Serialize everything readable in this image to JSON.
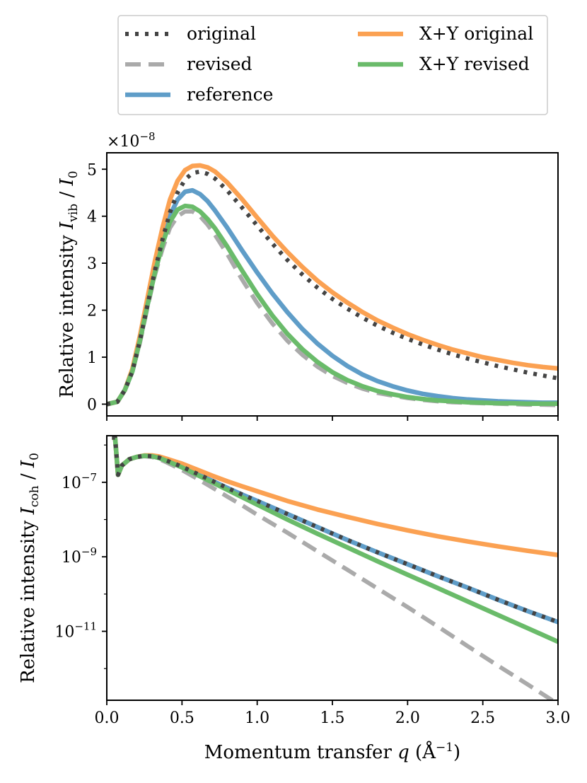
{
  "chart_data": [
    {
      "type": "line",
      "panel": "top",
      "ylabel": {
        "main": "Relative intensity ",
        "var": "I",
        "sub": "vib",
        "sep": " / ",
        "var2": "I",
        "sub2": "0"
      },
      "offset_text": {
        "base": "×10",
        "exp": "−8"
      },
      "xlim": [
        0.0,
        3.0
      ],
      "ylim": [
        -0.25,
        5.35
      ],
      "y_scale": "linear",
      "yticks": [
        0,
        1,
        2,
        3,
        4,
        5
      ],
      "ytick_labels": [
        "0",
        "1",
        "2",
        "3",
        "4",
        "5"
      ],
      "series": [
        {
          "name": "original",
          "color": "#444444",
          "style": "dotted",
          "x": [
            0,
            0.07,
            0.12,
            0.17,
            0.22,
            0.27,
            0.32,
            0.37,
            0.42,
            0.47,
            0.52,
            0.57,
            0.62,
            0.67,
            0.72,
            0.8,
            0.9,
            1.0,
            1.1,
            1.2,
            1.3,
            1.4,
            1.5,
            1.6,
            1.7,
            1.8,
            1.9,
            2.0,
            2.1,
            2.2,
            2.3,
            2.4,
            2.5,
            2.6,
            2.7,
            2.8,
            2.9,
            3.0
          ],
          "y": [
            0,
            0.05,
            0.3,
            0.7,
            1.35,
            2.1,
            2.85,
            3.5,
            4.08,
            4.5,
            4.78,
            4.92,
            4.95,
            4.9,
            4.8,
            4.55,
            4.18,
            3.8,
            3.42,
            3.07,
            2.76,
            2.48,
            2.24,
            2.03,
            1.84,
            1.67,
            1.52,
            1.39,
            1.27,
            1.16,
            1.06,
            0.97,
            0.89,
            0.81,
            0.74,
            0.67,
            0.61,
            0.55
          ]
        },
        {
          "name": "revised",
          "color": "#aaaaaa",
          "style": "dashed",
          "x": [
            0,
            0.07,
            0.12,
            0.17,
            0.22,
            0.27,
            0.32,
            0.37,
            0.42,
            0.47,
            0.52,
            0.57,
            0.62,
            0.67,
            0.72,
            0.8,
            0.9,
            1.0,
            1.1,
            1.2,
            1.3,
            1.4,
            1.5,
            1.6,
            1.7,
            1.8,
            1.9,
            2.0,
            2.1,
            2.2,
            2.3,
            2.4,
            2.5,
            2.6,
            2.7,
            2.8,
            2.9,
            3.0
          ],
          "y": [
            0,
            0.05,
            0.3,
            0.7,
            1.3,
            2.05,
            2.75,
            3.3,
            3.75,
            4.0,
            4.1,
            4.1,
            4.0,
            3.82,
            3.6,
            3.2,
            2.65,
            2.15,
            1.72,
            1.35,
            1.05,
            0.8,
            0.6,
            0.45,
            0.33,
            0.24,
            0.18,
            0.13,
            0.09,
            0.06,
            0.04,
            0.03,
            0.02,
            0.01,
            0.0,
            -0.01,
            -0.01,
            -0.02
          ]
        },
        {
          "name": "reference",
          "color": "#5f9dc8",
          "style": "solid",
          "x": [
            0,
            0.07,
            0.12,
            0.17,
            0.22,
            0.27,
            0.32,
            0.37,
            0.42,
            0.47,
            0.52,
            0.57,
            0.62,
            0.67,
            0.72,
            0.8,
            0.9,
            1.0,
            1.1,
            1.2,
            1.3,
            1.4,
            1.5,
            1.6,
            1.7,
            1.8,
            1.9,
            2.0,
            2.1,
            2.2,
            2.3,
            2.4,
            2.5,
            2.6,
            2.7,
            2.8,
            2.9,
            3.0
          ],
          "y": [
            0,
            0.05,
            0.3,
            0.7,
            1.35,
            2.1,
            2.85,
            3.5,
            4.02,
            4.35,
            4.52,
            4.55,
            4.47,
            4.32,
            4.12,
            3.76,
            3.27,
            2.8,
            2.36,
            1.96,
            1.6,
            1.29,
            1.03,
            0.81,
            0.63,
            0.49,
            0.38,
            0.29,
            0.22,
            0.17,
            0.13,
            0.1,
            0.08,
            0.06,
            0.05,
            0.04,
            0.03,
            0.03
          ]
        },
        {
          "name": "X+Y original",
          "color": "#fba152",
          "style": "solid",
          "x": [
            0,
            0.07,
            0.12,
            0.17,
            0.22,
            0.27,
            0.32,
            0.37,
            0.42,
            0.47,
            0.52,
            0.57,
            0.62,
            0.67,
            0.72,
            0.8,
            0.9,
            1.0,
            1.1,
            1.2,
            1.3,
            1.4,
            1.5,
            1.6,
            1.7,
            1.8,
            1.9,
            2.0,
            2.1,
            2.2,
            2.3,
            2.4,
            2.5,
            2.6,
            2.7,
            2.8,
            2.9,
            3.0
          ],
          "y": [
            0,
            0.05,
            0.3,
            0.75,
            1.45,
            2.25,
            3.05,
            3.75,
            4.35,
            4.75,
            4.98,
            5.07,
            5.08,
            5.04,
            4.95,
            4.72,
            4.36,
            3.97,
            3.59,
            3.24,
            2.92,
            2.63,
            2.38,
            2.16,
            1.96,
            1.78,
            1.63,
            1.49,
            1.37,
            1.26,
            1.16,
            1.08,
            1.0,
            0.94,
            0.88,
            0.83,
            0.79,
            0.76
          ]
        },
        {
          "name": "X+Y revised",
          "color": "#6abb6a",
          "style": "solid",
          "x": [
            0,
            0.07,
            0.12,
            0.17,
            0.22,
            0.27,
            0.32,
            0.37,
            0.42,
            0.47,
            0.52,
            0.57,
            0.62,
            0.67,
            0.72,
            0.8,
            0.9,
            1.0,
            1.1,
            1.2,
            1.3,
            1.4,
            1.5,
            1.6,
            1.7,
            1.8,
            1.9,
            2.0,
            2.1,
            2.2,
            2.3,
            2.4,
            2.5,
            2.6,
            2.7,
            2.8,
            2.9,
            3.0
          ],
          "y": [
            0,
            0.05,
            0.3,
            0.7,
            1.35,
            2.1,
            2.8,
            3.4,
            3.88,
            4.14,
            4.22,
            4.2,
            4.1,
            3.94,
            3.74,
            3.36,
            2.84,
            2.34,
            1.89,
            1.5,
            1.17,
            0.9,
            0.68,
            0.51,
            0.38,
            0.28,
            0.21,
            0.15,
            0.11,
            0.08,
            0.06,
            0.04,
            0.03,
            0.02,
            0.02,
            0.01,
            0.01,
            0.01
          ]
        }
      ]
    },
    {
      "type": "line",
      "panel": "bottom",
      "ylabel": {
        "main": "Relative intensity ",
        "var": "I",
        "sub": "coh",
        "sep": " / ",
        "var2": "I",
        "sub2": "0"
      },
      "xlabel": {
        "main": "Momentum transfer ",
        "var": "q",
        "unit_open": " (Å",
        "unit_exp": "−1",
        "unit_close": ")"
      },
      "xlim": [
        0.0,
        3.0
      ],
      "xticks": [
        0.0,
        0.5,
        1.0,
        1.5,
        2.0,
        2.5,
        3.0
      ],
      "xtick_labels": [
        "0.0",
        "0.5",
        "1.0",
        "1.5",
        "2.0",
        "2.5",
        "3.0"
      ],
      "y_scale": "log",
      "ylim_log10": [
        -12.85,
        -5.75
      ],
      "yticks_log10": [
        -7,
        -9,
        -11
      ],
      "ytick_labels": [
        {
          "base": "10",
          "exp": "−7"
        },
        {
          "base": "10",
          "exp": "−9"
        },
        {
          "base": "10",
          "exp": "−11"
        }
      ],
      "series": [
        {
          "name": "original",
          "color": "#444444",
          "style": "dotted",
          "x": [
            0.035,
            0.055,
            0.075,
            0.1,
            0.15,
            0.2,
            0.25,
            0.3,
            0.35,
            0.4,
            0.5,
            0.6,
            0.7,
            0.8,
            0.9,
            1.0,
            1.2,
            1.4,
            1.6,
            1.8,
            2.0,
            2.2,
            2.4,
            2.6,
            2.8,
            3.0
          ],
          "y_log10": [
            -5.8,
            -5.8,
            -6.8,
            -6.55,
            -6.38,
            -6.32,
            -6.29,
            -6.3,
            -6.34,
            -6.42,
            -6.58,
            -6.77,
            -6.96,
            -7.15,
            -7.33,
            -7.5,
            -7.85,
            -8.2,
            -8.55,
            -8.88,
            -9.2,
            -9.52,
            -9.83,
            -10.15,
            -10.46,
            -10.75
          ]
        },
        {
          "name": "revised",
          "color": "#aaaaaa",
          "style": "dashed",
          "x": [
            0.035,
            0.055,
            0.075,
            0.1,
            0.15,
            0.2,
            0.25,
            0.3,
            0.35,
            0.4,
            0.5,
            0.6,
            0.7,
            0.8,
            0.9,
            1.0,
            1.2,
            1.4,
            1.6,
            1.8,
            2.0,
            2.2,
            2.4,
            2.6,
            2.8,
            3.0
          ],
          "y_log10": [
            -5.8,
            -5.8,
            -6.8,
            -6.55,
            -6.38,
            -6.32,
            -6.3,
            -6.32,
            -6.38,
            -6.47,
            -6.67,
            -6.9,
            -7.14,
            -7.38,
            -7.62,
            -7.87,
            -8.35,
            -8.85,
            -9.35,
            -9.85,
            -10.35,
            -10.87,
            -11.4,
            -11.92,
            -12.43,
            -12.95
          ]
        },
        {
          "name": "reference",
          "color": "#5f9dc8",
          "style": "solid",
          "x": [
            0.035,
            0.055,
            0.075,
            0.1,
            0.15,
            0.2,
            0.25,
            0.3,
            0.35,
            0.4,
            0.5,
            0.6,
            0.7,
            0.8,
            0.9,
            1.0,
            1.2,
            1.4,
            1.6,
            1.8,
            2.0,
            2.2,
            2.4,
            2.6,
            2.8,
            3.0
          ],
          "y_log10": [
            -5.8,
            -5.8,
            -6.8,
            -6.55,
            -6.38,
            -6.32,
            -6.29,
            -6.3,
            -6.34,
            -6.42,
            -6.58,
            -6.77,
            -6.96,
            -7.15,
            -7.33,
            -7.5,
            -7.85,
            -8.2,
            -8.55,
            -8.88,
            -9.2,
            -9.52,
            -9.83,
            -10.15,
            -10.46,
            -10.75
          ]
        },
        {
          "name": "X+Y original",
          "color": "#fba152",
          "style": "solid",
          "x": [
            0.035,
            0.055,
            0.075,
            0.1,
            0.15,
            0.2,
            0.25,
            0.3,
            0.35,
            0.4,
            0.5,
            0.6,
            0.7,
            0.8,
            0.9,
            1.0,
            1.2,
            1.4,
            1.6,
            1.8,
            2.0,
            2.2,
            2.4,
            2.6,
            2.8,
            3.0
          ],
          "y_log10": [
            -5.8,
            -5.8,
            -6.8,
            -6.55,
            -6.38,
            -6.32,
            -6.28,
            -6.28,
            -6.31,
            -6.37,
            -6.5,
            -6.66,
            -6.82,
            -6.97,
            -7.11,
            -7.24,
            -7.5,
            -7.73,
            -7.93,
            -8.12,
            -8.29,
            -8.45,
            -8.59,
            -8.72,
            -8.84,
            -8.95
          ]
        },
        {
          "name": "X+Y revised",
          "color": "#6abb6a",
          "style": "solid",
          "x": [
            0.035,
            0.055,
            0.075,
            0.1,
            0.15,
            0.2,
            0.25,
            0.3,
            0.35,
            0.4,
            0.5,
            0.6,
            0.7,
            0.8,
            0.9,
            1.0,
            1.2,
            1.4,
            1.6,
            1.8,
            2.0,
            2.2,
            2.4,
            2.6,
            2.8,
            3.0
          ],
          "y_log10": [
            -5.8,
            -5.8,
            -6.8,
            -6.55,
            -6.38,
            -6.32,
            -6.29,
            -6.3,
            -6.35,
            -6.43,
            -6.6,
            -6.8,
            -7.0,
            -7.2,
            -7.4,
            -7.6,
            -8.0,
            -8.38,
            -8.75,
            -9.12,
            -9.48,
            -9.84,
            -10.2,
            -10.56,
            -10.92,
            -11.28
          ]
        }
      ]
    }
  ],
  "legend": {
    "placement": "top-center",
    "entries": [
      {
        "label": "original",
        "color": "#444444",
        "style": "dotted"
      },
      {
        "label": "revised",
        "color": "#aaaaaa",
        "style": "dashed"
      },
      {
        "label": "reference",
        "color": "#5f9dc8",
        "style": "solid"
      },
      {
        "label": "X+Y original",
        "color": "#fba152",
        "style": "solid"
      },
      {
        "label": "X+Y revised",
        "color": "#6abb6a",
        "style": "solid"
      }
    ]
  }
}
